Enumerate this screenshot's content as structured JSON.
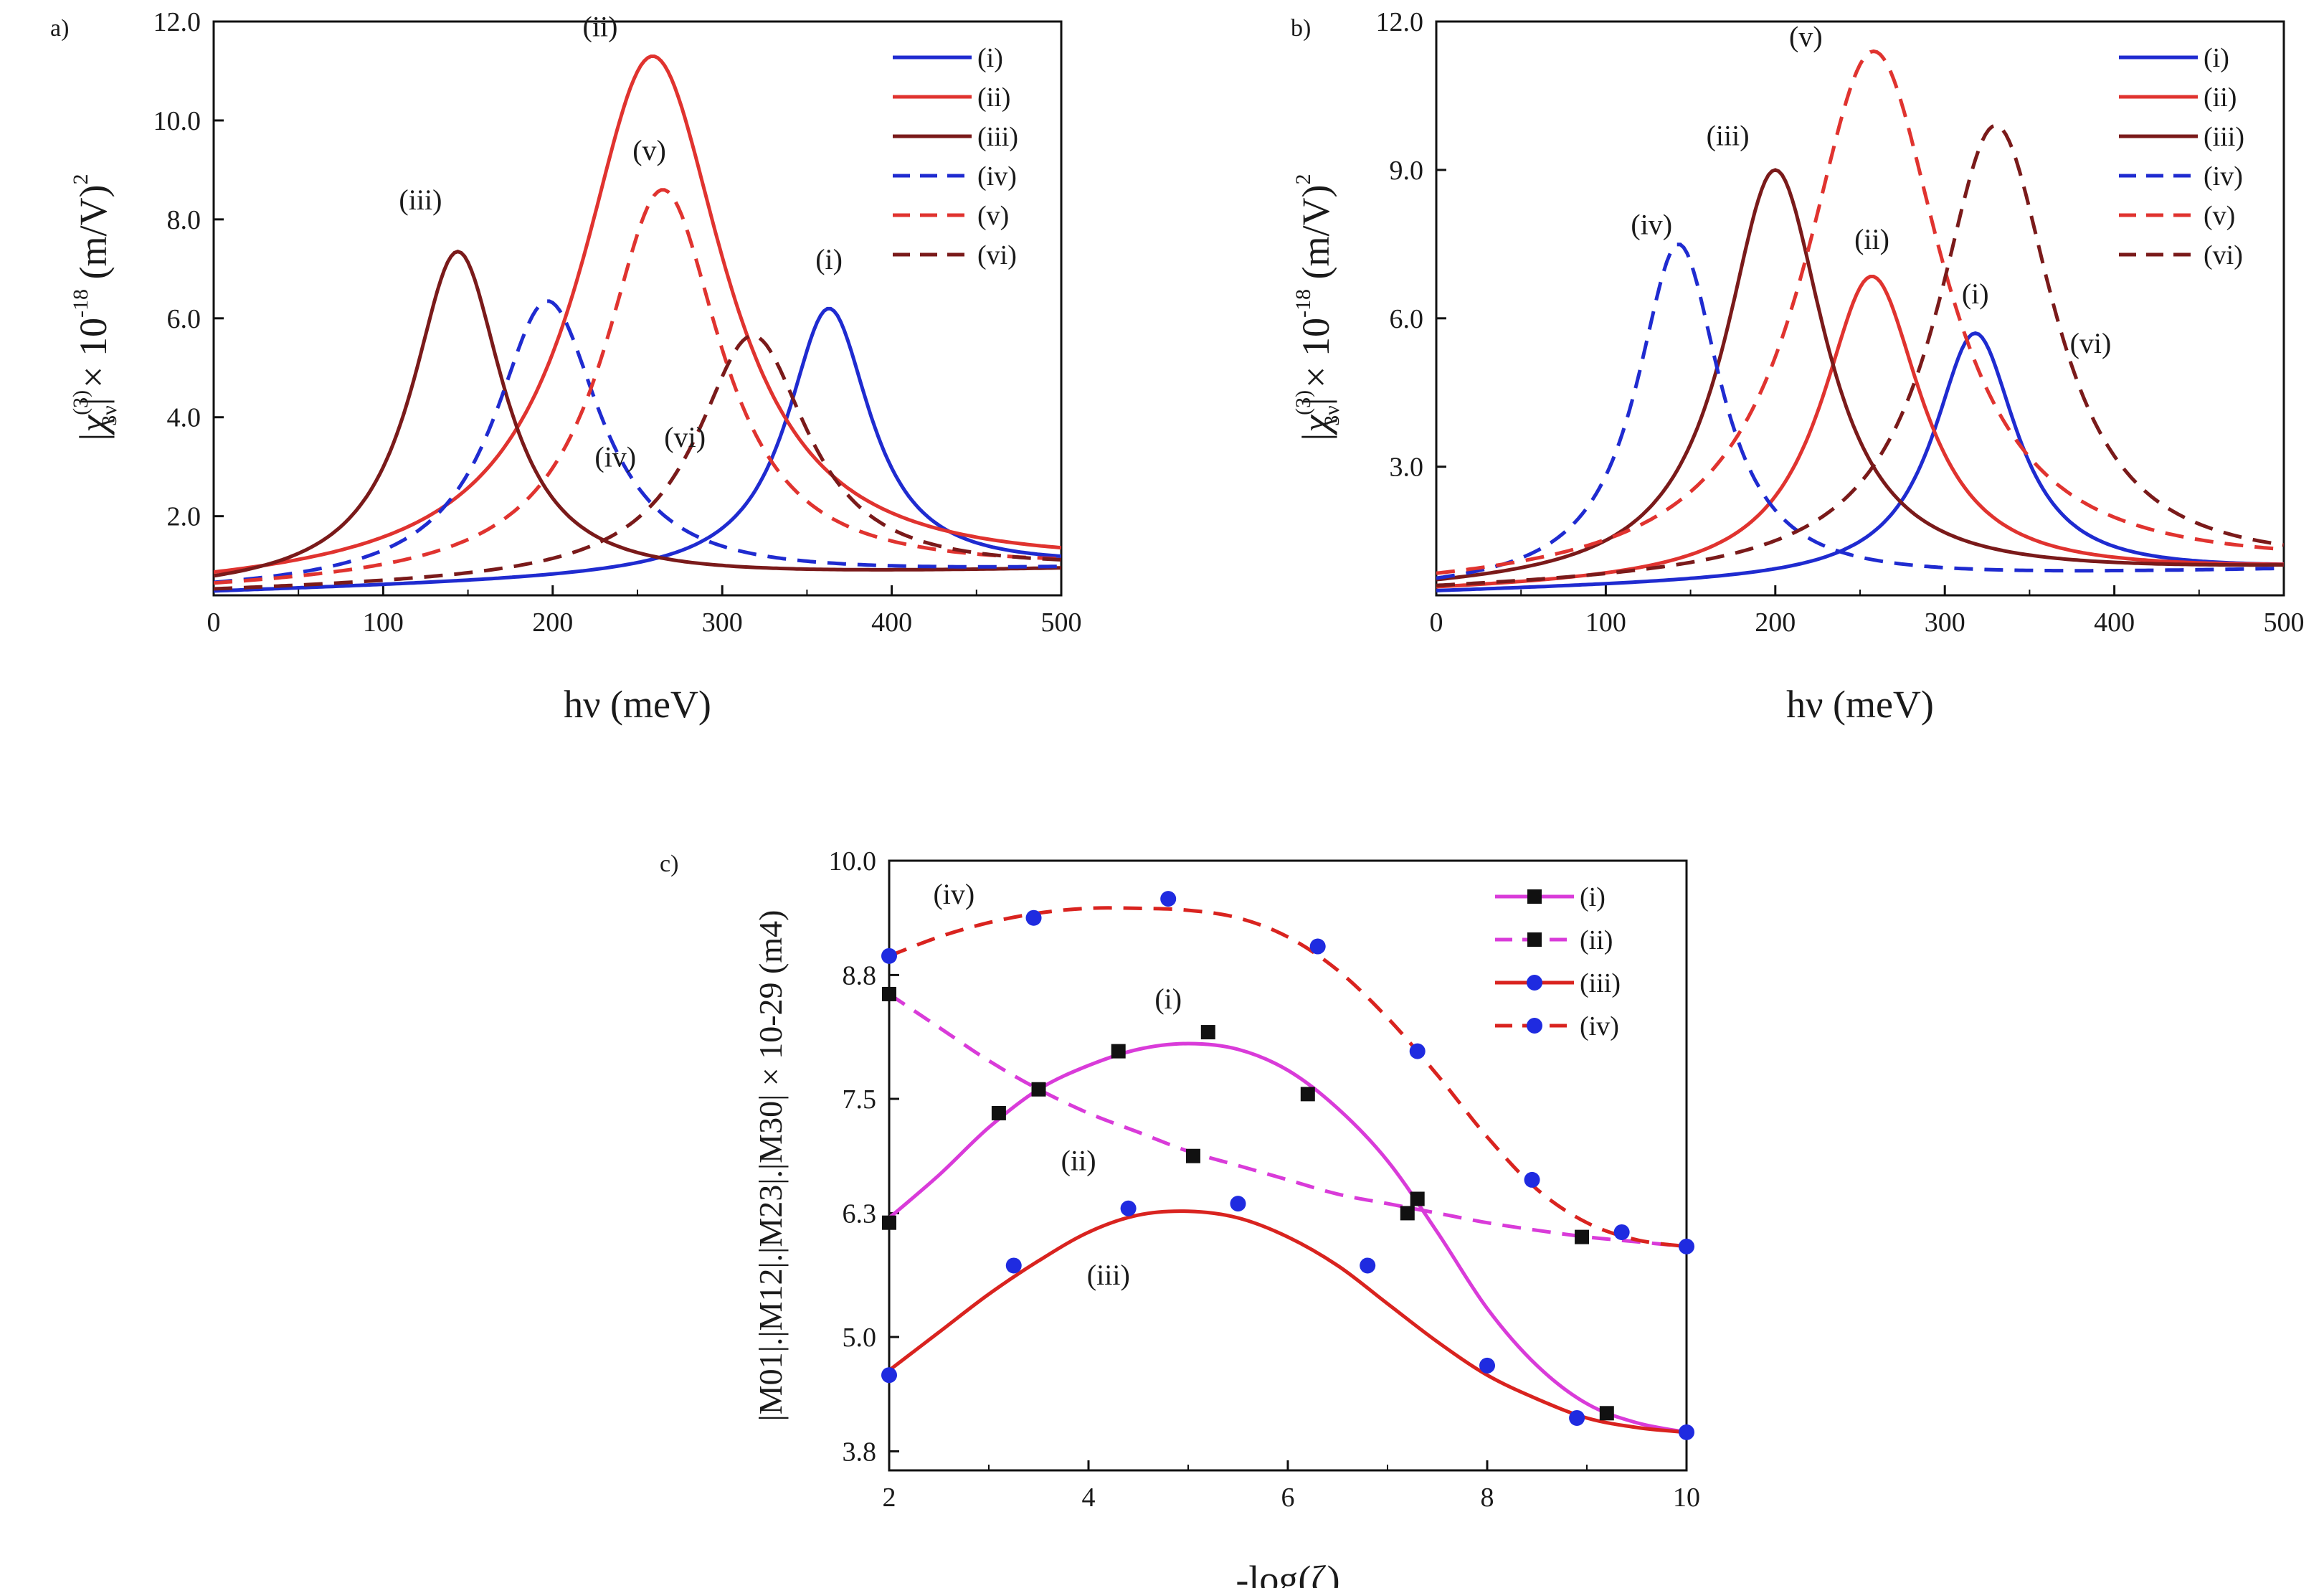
{
  "chart_data": [
    {
      "panel": "a)",
      "type": "line",
      "xlabel": "hν (meV)",
      "ylabel_main": "|χ",
      "ylabel_sup": "(3)",
      "ylabel_sub": "3ν",
      "ylabel_tail": "| × 10",
      "ylabel_exp": "-18",
      "ylabel_unit": " (m/V)",
      "ylabel_unit_sup": "2",
      "xlim": [
        0,
        500
      ],
      "ylim": [
        0.4,
        12.0
      ],
      "xticks": [
        0,
        100,
        200,
        300,
        400,
        500
      ],
      "yticks": [
        2.0,
        4.0,
        6.0,
        8.0,
        10.0,
        12.0
      ],
      "ytick_labels": [
        "2.0",
        "4.0",
        "6.0",
        "8.0",
        "10.0",
        "12.0"
      ],
      "series": [
        {
          "name": "(i)",
          "color": "#1f2bd0",
          "dash": false,
          "peak_x": 363,
          "peak_y": 6.2,
          "width": 30,
          "base": 0.45,
          "end": 0.95,
          "annot": "(i)",
          "annot_x": 363,
          "annot_y": 7.0
        },
        {
          "name": "(ii)",
          "color": "#e0332f",
          "dash": false,
          "peak_x": 259,
          "peak_y": 11.3,
          "width": 52,
          "base": 0.45,
          "end": 0.9,
          "annot": "(ii)",
          "annot_x": 228,
          "annot_y": 11.7
        },
        {
          "name": "(iii)",
          "color": "#7a1a1a",
          "dash": false,
          "peak_x": 144,
          "peak_y": 7.35,
          "width": 33,
          "base": 0.45,
          "end": 0.9,
          "annot": "(iii)",
          "annot_x": 122,
          "annot_y": 8.2
        },
        {
          "name": "(iv)",
          "color": "#1f2bd0",
          "dash": true,
          "peak_x": 197,
          "peak_y": 6.35,
          "width": 38,
          "base": 0.45,
          "end": 0.9,
          "annot": "(iv)",
          "annot_x": 237,
          "annot_y": 3.0
        },
        {
          "name": "(v)",
          "color": "#e0332f",
          "dash": true,
          "peak_x": 265,
          "peak_y": 8.6,
          "width": 42,
          "base": 0.45,
          "end": 0.9,
          "annot": "(v)",
          "annot_x": 257,
          "annot_y": 9.2
        },
        {
          "name": "(vi)",
          "color": "#7a1a1a",
          "dash": true,
          "peak_x": 318,
          "peak_y": 5.65,
          "width": 40,
          "base": 0.45,
          "end": 0.9,
          "annot": "(vi)",
          "annot_x": 278,
          "annot_y": 3.4
        }
      ]
    },
    {
      "panel": "b)",
      "type": "line",
      "xlabel": "hν (meV)",
      "ylabel_main": "|χ",
      "ylabel_sup": "(3)",
      "ylabel_sub": "3ν",
      "ylabel_tail": "| × 10",
      "ylabel_exp": "-18",
      "ylabel_unit": " (m/V)",
      "ylabel_unit_sup": "2",
      "xlim": [
        0,
        500
      ],
      "ylim": [
        0.4,
        12.0
      ],
      "xticks": [
        0,
        100,
        200,
        300,
        400,
        500
      ],
      "yticks": [
        3.0,
        6.0,
        9.0,
        12.0
      ],
      "ytick_labels": [
        "3.0",
        "6.0",
        "9.0",
        "12.0"
      ],
      "series": [
        {
          "name": "(i)",
          "color": "#1f2bd0",
          "dash": false,
          "peak_x": 318,
          "peak_y": 5.7,
          "width": 30,
          "base": 0.45,
          "end": 0.9,
          "annot": "(i)",
          "annot_x": 318,
          "annot_y": 6.3
        },
        {
          "name": "(ii)",
          "color": "#e0332f",
          "dash": false,
          "peak_x": 257,
          "peak_y": 6.85,
          "width": 36,
          "base": 0.45,
          "end": 0.9,
          "annot": "(ii)",
          "annot_x": 257,
          "annot_y": 7.4
        },
        {
          "name": "(iii)",
          "color": "#7a1a1a",
          "dash": false,
          "peak_x": 200,
          "peak_y": 9.0,
          "width": 36,
          "base": 0.45,
          "end": 0.9,
          "annot": "(iii)",
          "annot_x": 172,
          "annot_y": 9.5
        },
        {
          "name": "(iv)",
          "color": "#1f2bd0",
          "dash": true,
          "peak_x": 143,
          "peak_y": 7.5,
          "width": 30,
          "base": 0.45,
          "end": 0.9,
          "annot": "(iv)",
          "annot_x": 127,
          "annot_y": 7.7
        },
        {
          "name": "(v)",
          "color": "#e0332f",
          "dash": true,
          "peak_x": 258,
          "peak_y": 11.4,
          "width": 50,
          "base": 0.45,
          "end": 0.9,
          "annot": "(v)",
          "annot_x": 218,
          "annot_y": 11.5
        },
        {
          "name": "(vi)",
          "color": "#7a1a1a",
          "dash": true,
          "peak_x": 330,
          "peak_y": 9.9,
          "width": 42,
          "base": 0.45,
          "end": 0.9,
          "annot": "(vi)",
          "annot_x": 386,
          "annot_y": 5.3
        }
      ]
    },
    {
      "panel": "c)",
      "type": "line",
      "xlabel": "-log(ζ)",
      "ylabel_text": "|M01|.|M12|.|M23|.|M30| × 10-29 (m4)",
      "xlim": [
        2,
        10
      ],
      "ylim": [
        3.6,
        10.0
      ],
      "xticks": [
        2,
        4,
        6,
        8,
        10
      ],
      "yticks": [
        3.8,
        5.0,
        6.3,
        7.5,
        8.8,
        10.0
      ],
      "ytick_labels": [
        "3.8",
        "5.0",
        "6.3",
        "7.5",
        "8.8",
        "10.0"
      ],
      "series": [
        {
          "name": "(i)",
          "color": "#d93bd9",
          "dash": false,
          "marker": "square",
          "curve_x": [
            2.0,
            2.5,
            3.0,
            3.5,
            4.0,
            4.5,
            5.0,
            5.5,
            6.0,
            6.5,
            7.0,
            7.5,
            8.0,
            8.5,
            9.0,
            9.5,
            10.0
          ],
          "curve_y": [
            6.25,
            6.7,
            7.2,
            7.6,
            7.85,
            8.02,
            8.08,
            8.02,
            7.8,
            7.4,
            6.85,
            6.1,
            5.3,
            4.7,
            4.3,
            4.1,
            4.0
          ],
          "points_x": [
            2.0,
            3.1,
            3.5,
            4.3,
            5.2,
            6.2,
            7.3,
            9.2
          ],
          "points_y": [
            6.2,
            7.35,
            7.6,
            8.0,
            8.2,
            7.55,
            6.45,
            4.2
          ],
          "annot": "(i)",
          "annot_x": 4.8,
          "annot_y": 8.45
        },
        {
          "name": "(ii)",
          "color": "#d93bd9",
          "dash": true,
          "marker": "square",
          "curve_x": [
            2.0,
            2.5,
            3.0,
            3.5,
            4.0,
            4.5,
            5.0,
            5.5,
            6.0,
            6.5,
            7.0,
            7.5,
            8.0,
            8.5,
            9.0,
            9.5,
            10.0
          ],
          "curve_y": [
            8.6,
            8.25,
            7.9,
            7.6,
            7.35,
            7.15,
            6.95,
            6.8,
            6.65,
            6.5,
            6.4,
            6.3,
            6.2,
            6.12,
            6.05,
            6.0,
            5.95
          ],
          "points_x": [
            2.0,
            5.05,
            7.2,
            8.95
          ],
          "points_y": [
            8.6,
            6.9,
            6.3,
            6.05
          ],
          "annot": "(ii)",
          "annot_x": 3.9,
          "annot_y": 6.75
        },
        {
          "name": "(iii)",
          "color": "#d9231f",
          "dash": false,
          "marker": "circle",
          "curve_x": [
            2.0,
            2.5,
            3.0,
            3.5,
            4.0,
            4.5,
            5.0,
            5.5,
            6.0,
            6.5,
            7.0,
            7.5,
            8.0,
            8.5,
            9.0,
            9.5,
            10.0
          ],
          "curve_y": [
            4.65,
            5.05,
            5.45,
            5.8,
            6.1,
            6.28,
            6.32,
            6.25,
            6.05,
            5.75,
            5.35,
            4.95,
            4.6,
            4.35,
            4.15,
            4.05,
            4.0
          ],
          "points_x": [
            2.0,
            3.25,
            4.4,
            5.5,
            6.8,
            8.0,
            8.9,
            10.0
          ],
          "points_y": [
            4.6,
            5.75,
            6.35,
            6.4,
            5.75,
            4.7,
            4.15,
            4.0
          ],
          "annot": "(iii)",
          "annot_x": 4.2,
          "annot_y": 5.55
        },
        {
          "name": "(iv)",
          "color": "#d9231f",
          "dash": true,
          "marker": "circle",
          "curve_x": [
            2.0,
            2.5,
            3.0,
            3.5,
            4.0,
            4.5,
            5.0,
            5.5,
            6.0,
            6.5,
            7.0,
            7.5,
            8.0,
            8.5,
            9.0,
            9.5,
            10.0
          ],
          "curve_y": [
            9.0,
            9.2,
            9.35,
            9.45,
            9.5,
            9.5,
            9.48,
            9.4,
            9.2,
            8.85,
            8.35,
            7.75,
            7.1,
            6.55,
            6.2,
            6.02,
            5.95
          ],
          "points_x": [
            2.0,
            3.45,
            4.8,
            6.3,
            7.3,
            8.45,
            9.35,
            10.0
          ],
          "points_y": [
            9.0,
            9.4,
            9.6,
            9.1,
            8.0,
            6.65,
            6.1,
            5.95
          ],
          "annot": "(iv)",
          "annot_x": 2.65,
          "annot_y": 9.55
        }
      ]
    }
  ]
}
